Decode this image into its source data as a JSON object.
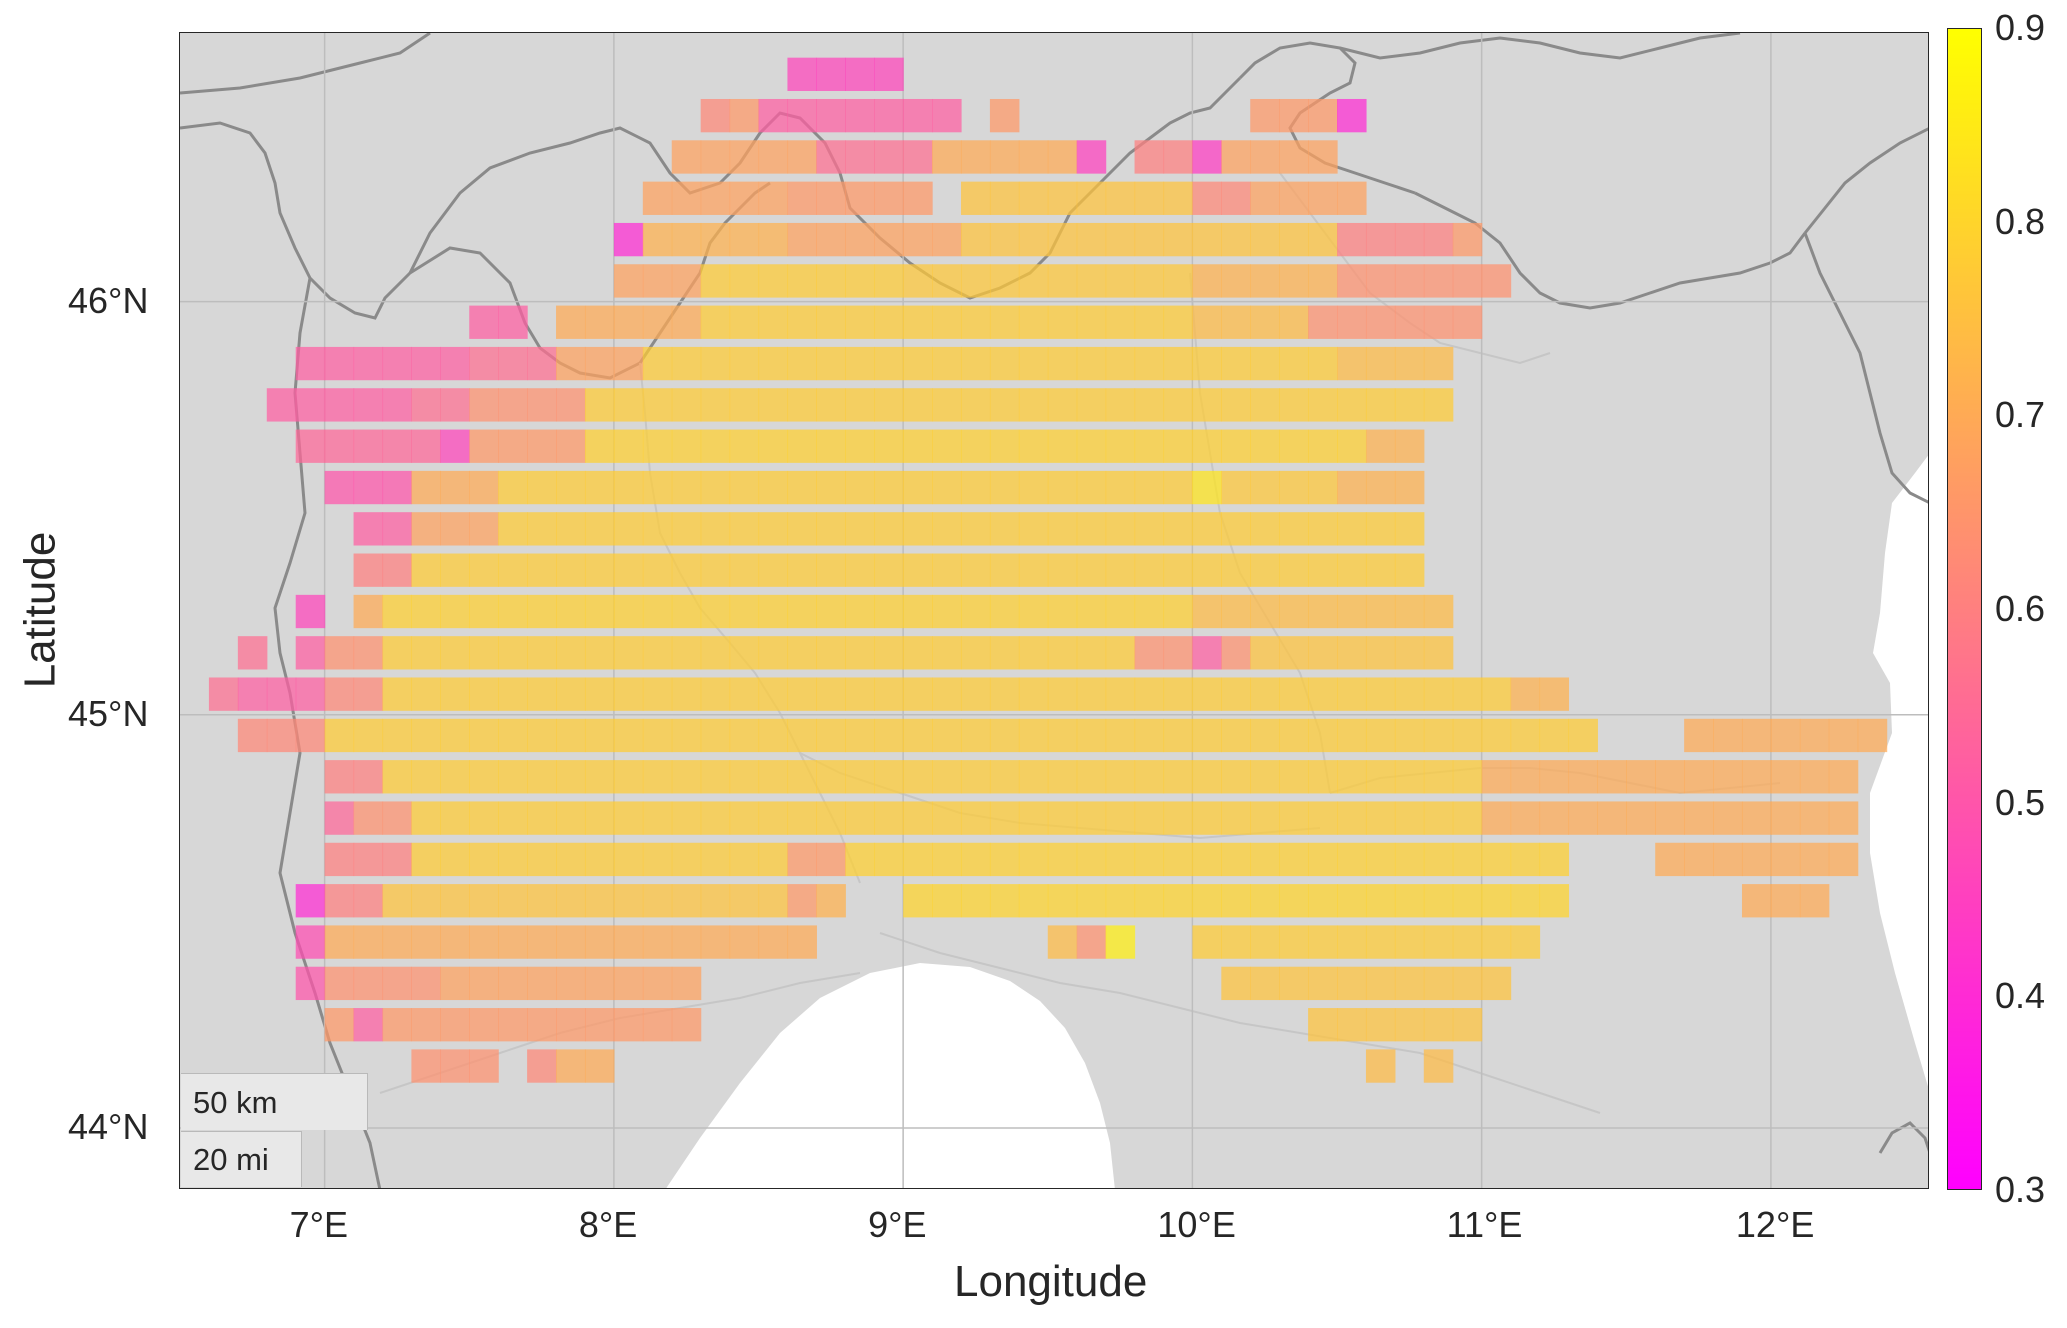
{
  "chart_data": {
    "type": "heatmap",
    "xlabel": "Longitude",
    "ylabel": "Latitude",
    "xlim": [
      6.5,
      12.55
    ],
    "ylim": [
      43.85,
      46.65
    ],
    "x_ticks": [
      7,
      8,
      9,
      10,
      11,
      12
    ],
    "x_tick_labels": [
      "7°E",
      "8°E",
      "9°E",
      "10°E",
      "11°E",
      "12°E"
    ],
    "y_ticks": [
      44,
      45,
      46
    ],
    "y_tick_labels": [
      "44°N",
      "45°N",
      "46°N"
    ],
    "grid": true,
    "cell_size_deg": [
      0.1,
      0.1
    ],
    "colorbar": {
      "min": 0.3,
      "max": 0.9,
      "ticks": [
        0.3,
        0.4,
        0.5,
        0.6,
        0.7,
        0.8,
        0.9
      ],
      "tick_labels": [
        "0.3",
        "0.4",
        "0.5",
        "0.6",
        "0.7",
        "0.8",
        "0.9"
      ],
      "colors": [
        "#ff00ff",
        "#ffff00"
      ]
    },
    "rows": [
      {
        "lat": 46.55,
        "segments": [
          [
            8.6,
            9.0,
            0.46
          ]
        ]
      },
      {
        "lat": 46.45,
        "segments": [
          [
            8.3,
            8.4,
            0.62
          ],
          [
            8.4,
            8.5,
            0.66
          ],
          [
            8.5,
            9.2,
            0.52
          ],
          [
            9.3,
            9.4,
            0.66
          ],
          [
            10.2,
            10.5,
            0.66
          ],
          [
            10.5,
            10.6,
            0.4
          ]
        ]
      },
      {
        "lat": 46.35,
        "segments": [
          [
            8.2,
            8.7,
            0.68
          ],
          [
            8.7,
            9.1,
            0.56
          ],
          [
            9.1,
            9.6,
            0.7
          ],
          [
            9.6,
            9.7,
            0.45
          ],
          [
            9.8,
            10.0,
            0.6
          ],
          [
            10.0,
            10.1,
            0.44
          ],
          [
            10.1,
            10.5,
            0.68
          ]
        ]
      },
      {
        "lat": 46.25,
        "segments": [
          [
            8.1,
            8.6,
            0.68
          ],
          [
            8.6,
            9.1,
            0.66
          ],
          [
            9.2,
            10.0,
            0.76
          ],
          [
            10.0,
            10.2,
            0.62
          ],
          [
            10.2,
            10.6,
            0.68
          ]
        ]
      },
      {
        "lat": 46.15,
        "segments": [
          [
            8.0,
            8.1,
            0.4
          ],
          [
            8.1,
            8.6,
            0.72
          ],
          [
            8.6,
            9.2,
            0.68
          ],
          [
            9.2,
            10.5,
            0.76
          ],
          [
            10.5,
            10.9,
            0.6
          ],
          [
            10.9,
            11.0,
            0.66
          ]
        ]
      },
      {
        "lat": 46.05,
        "segments": [
          [
            8.0,
            8.3,
            0.68
          ],
          [
            8.3,
            9.0,
            0.78
          ],
          [
            9.0,
            10.0,
            0.77
          ],
          [
            10.0,
            10.5,
            0.72
          ],
          [
            10.5,
            11.1,
            0.64
          ]
        ]
      },
      {
        "lat": 45.95,
        "segments": [
          [
            7.5,
            7.7,
            0.52
          ],
          [
            7.8,
            8.3,
            0.7
          ],
          [
            8.3,
            10.0,
            0.78
          ],
          [
            10.0,
            10.4,
            0.74
          ],
          [
            10.4,
            11.0,
            0.64
          ]
        ]
      },
      {
        "lat": 45.85,
        "segments": [
          [
            6.9,
            7.5,
            0.52
          ],
          [
            7.5,
            7.8,
            0.56
          ],
          [
            7.8,
            8.1,
            0.68
          ],
          [
            8.1,
            10.5,
            0.78
          ],
          [
            10.5,
            10.9,
            0.74
          ]
        ]
      },
      {
        "lat": 45.75,
        "segments": [
          [
            6.8,
            7.3,
            0.52
          ],
          [
            7.3,
            7.5,
            0.56
          ],
          [
            7.5,
            7.9,
            0.64
          ],
          [
            7.9,
            10.9,
            0.78
          ]
        ]
      },
      {
        "lat": 45.65,
        "segments": [
          [
            6.9,
            7.4,
            0.54
          ],
          [
            7.4,
            7.5,
            0.46
          ],
          [
            7.5,
            7.9,
            0.66
          ],
          [
            7.9,
            10.6,
            0.79
          ],
          [
            10.6,
            10.8,
            0.72
          ]
        ]
      },
      {
        "lat": 45.55,
        "segments": [
          [
            7.0,
            7.3,
            0.5
          ],
          [
            7.3,
            7.6,
            0.7
          ],
          [
            7.6,
            10.0,
            0.78
          ],
          [
            10.0,
            10.1,
            0.84
          ],
          [
            10.1,
            10.5,
            0.77
          ],
          [
            10.5,
            10.8,
            0.72
          ]
        ]
      },
      {
        "lat": 45.45,
        "segments": [
          [
            7.1,
            7.3,
            0.52
          ],
          [
            7.3,
            7.6,
            0.68
          ],
          [
            7.6,
            10.8,
            0.78
          ]
        ]
      },
      {
        "lat": 45.35,
        "segments": [
          [
            7.1,
            7.3,
            0.6
          ],
          [
            7.3,
            10.8,
            0.78
          ]
        ]
      },
      {
        "lat": 45.25,
        "segments": [
          [
            6.9,
            7.0,
            0.46
          ],
          [
            7.1,
            7.2,
            0.7
          ],
          [
            7.2,
            10.0,
            0.79
          ],
          [
            10.0,
            10.9,
            0.74
          ]
        ]
      },
      {
        "lat": 45.15,
        "segments": [
          [
            6.7,
            6.8,
            0.56
          ],
          [
            6.9,
            7.0,
            0.52
          ],
          [
            7.0,
            7.2,
            0.64
          ],
          [
            7.2,
            9.8,
            0.78
          ],
          [
            9.8,
            10.0,
            0.64
          ],
          [
            10.0,
            10.1,
            0.52
          ],
          [
            10.1,
            10.2,
            0.64
          ],
          [
            10.2,
            10.9,
            0.76
          ]
        ]
      },
      {
        "lat": 45.05,
        "segments": [
          [
            6.6,
            6.7,
            0.56
          ],
          [
            6.7,
            7.0,
            0.52
          ],
          [
            7.0,
            7.2,
            0.62
          ],
          [
            7.2,
            11.1,
            0.78
          ],
          [
            11.1,
            11.3,
            0.72
          ]
        ]
      },
      {
        "lat": 44.95,
        "segments": [
          [
            6.7,
            7.0,
            0.62
          ],
          [
            7.0,
            11.4,
            0.78
          ],
          [
            11.7,
            12.4,
            0.7
          ]
        ]
      },
      {
        "lat": 44.85,
        "segments": [
          [
            7.0,
            7.2,
            0.6
          ],
          [
            7.2,
            11.0,
            0.78
          ],
          [
            11.0,
            12.3,
            0.7
          ]
        ]
      },
      {
        "lat": 44.75,
        "segments": [
          [
            7.0,
            7.1,
            0.54
          ],
          [
            7.1,
            7.3,
            0.64
          ],
          [
            7.3,
            11.0,
            0.78
          ],
          [
            11.0,
            12.3,
            0.7
          ]
        ]
      },
      {
        "lat": 44.65,
        "segments": [
          [
            7.0,
            7.3,
            0.6
          ],
          [
            7.3,
            8.6,
            0.78
          ],
          [
            8.6,
            8.8,
            0.66
          ],
          [
            8.8,
            11.3,
            0.79
          ],
          [
            11.6,
            12.3,
            0.7
          ]
        ]
      },
      {
        "lat": 44.55,
        "segments": [
          [
            6.9,
            7.0,
            0.4
          ],
          [
            7.0,
            7.2,
            0.6
          ],
          [
            7.2,
            8.6,
            0.76
          ],
          [
            8.6,
            8.7,
            0.66
          ],
          [
            8.7,
            8.8,
            0.72
          ],
          [
            9.0,
            11.3,
            0.8
          ],
          [
            11.9,
            12.2,
            0.7
          ]
        ]
      },
      {
        "lat": 44.45,
        "segments": [
          [
            6.9,
            7.0,
            0.48
          ],
          [
            7.0,
            8.7,
            0.7
          ],
          [
            9.5,
            9.6,
            0.74
          ],
          [
            9.6,
            9.7,
            0.64
          ],
          [
            9.7,
            9.8,
            0.86
          ],
          [
            10.0,
            11.2,
            0.78
          ]
        ]
      },
      {
        "lat": 44.35,
        "segments": [
          [
            6.9,
            7.0,
            0.5
          ],
          [
            7.0,
            7.4,
            0.64
          ],
          [
            7.4,
            8.3,
            0.68
          ],
          [
            10.1,
            11.1,
            0.76
          ]
        ]
      },
      {
        "lat": 44.25,
        "segments": [
          [
            7.0,
            7.1,
            0.66
          ],
          [
            7.1,
            7.2,
            0.52
          ],
          [
            7.2,
            8.3,
            0.66
          ],
          [
            10.4,
            11.0,
            0.76
          ]
        ]
      },
      {
        "lat": 44.15,
        "segments": [
          [
            7.3,
            7.6,
            0.64
          ],
          [
            7.7,
            7.8,
            0.62
          ],
          [
            7.8,
            8.0,
            0.7
          ],
          [
            10.6,
            10.7,
            0.74
          ],
          [
            10.8,
            10.9,
            0.74
          ]
        ]
      }
    ]
  },
  "scale_bar": {
    "km_label": "50 km",
    "mi_label": "20 mi"
  },
  "colors": {
    "land": "#d7d7d7",
    "sea": "#ffffff",
    "border": "#8a8a8a",
    "grid": "#bdbdbd"
  }
}
